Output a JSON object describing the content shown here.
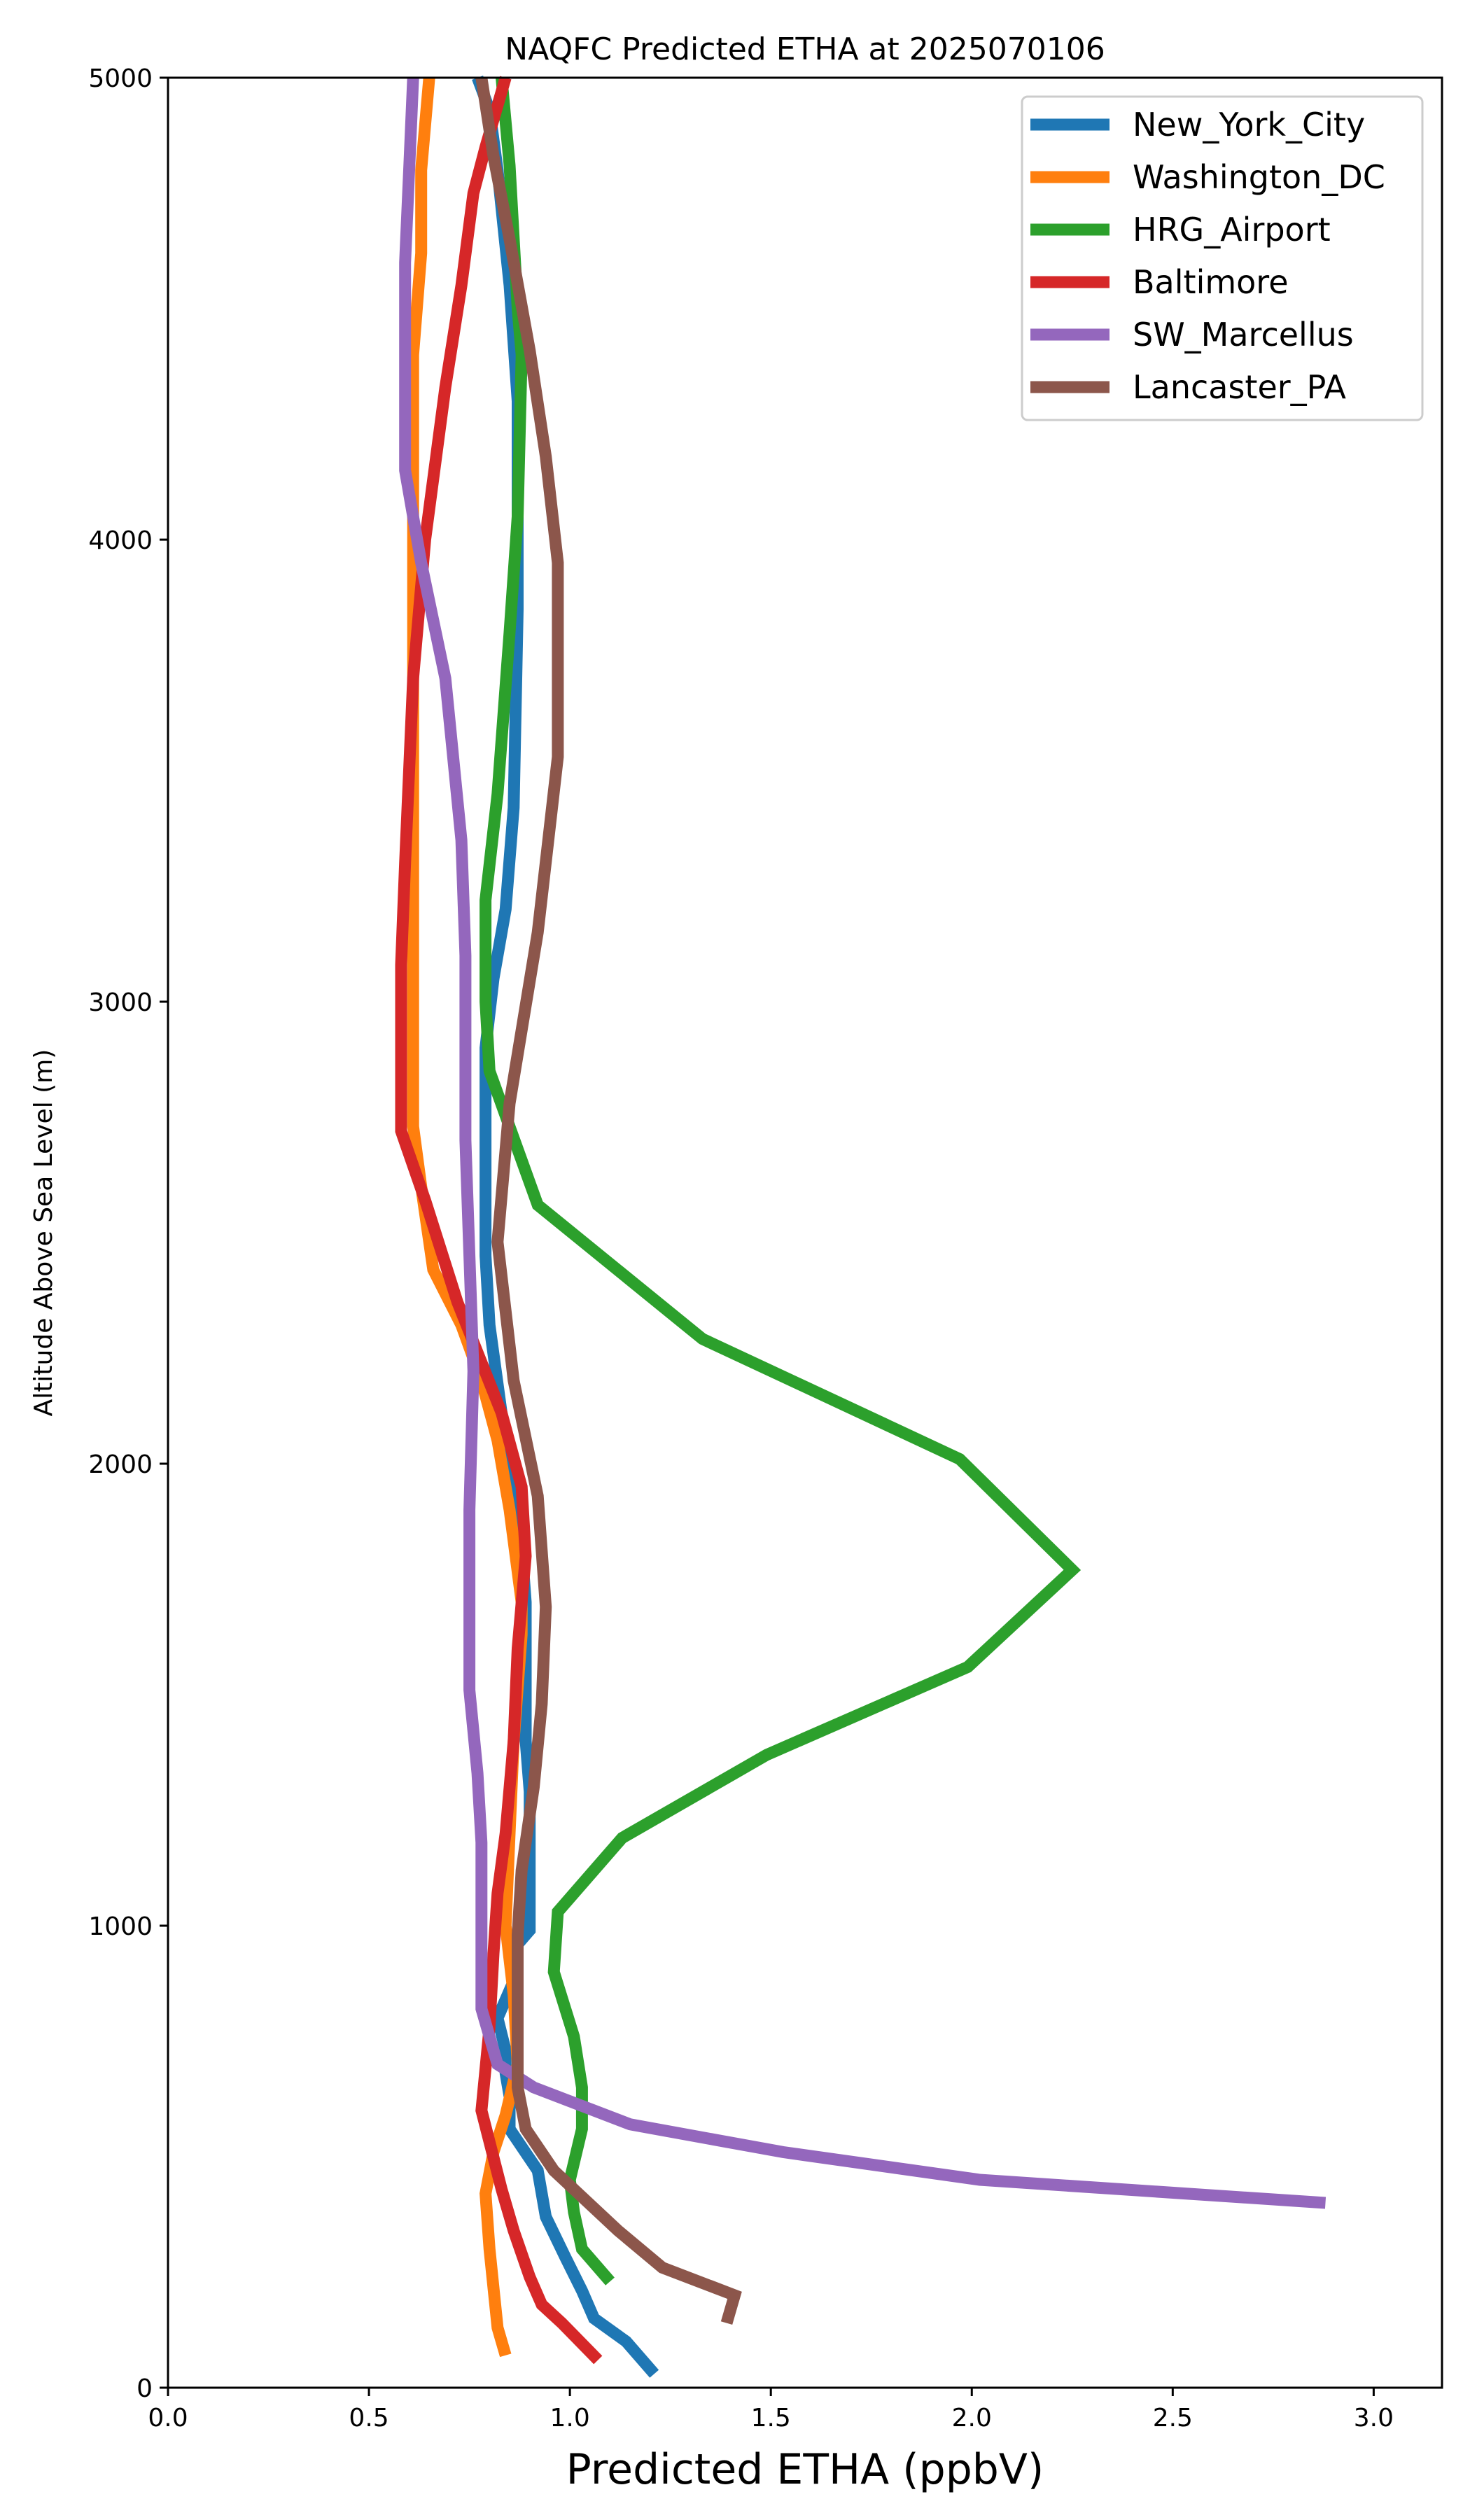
{
  "chart_data": {
    "type": "line",
    "title": "NAQFC Predicted ETHA at 2025070106",
    "xlabel": "Predicted ETHA (ppbV)",
    "ylabel": "Altitude Above Sea Level (m)",
    "xlim": [
      0,
      3.17
    ],
    "ylim": [
      0,
      5000
    ],
    "xticks": [
      "0.0",
      "0.5",
      "1.0",
      "1.5",
      "2.0",
      "2.5",
      "3.0"
    ],
    "yticks": [
      "0",
      "1000",
      "2000",
      "3000",
      "4000",
      "5000"
    ],
    "grid": false,
    "legend_position": "top-right",
    "series": [
      {
        "name": "New_York_City",
        "color": "#1f77b4",
        "points": [
          [
            1.21,
            30
          ],
          [
            1.14,
            100
          ],
          [
            1.06,
            150
          ],
          [
            1.03,
            210
          ],
          [
            0.99,
            280
          ],
          [
            0.94,
            370
          ],
          [
            0.92,
            470
          ],
          [
            0.85,
            560
          ],
          [
            0.85,
            630
          ],
          [
            0.84,
            680
          ],
          [
            0.84,
            730
          ],
          [
            0.82,
            800
          ],
          [
            0.86,
            880
          ],
          [
            0.86,
            950
          ],
          [
            0.9,
            990
          ],
          [
            0.9,
            1060
          ],
          [
            0.9,
            1180
          ],
          [
            0.9,
            1290
          ],
          [
            0.89,
            1400
          ],
          [
            0.89,
            1510
          ],
          [
            0.89,
            1620
          ],
          [
            0.89,
            1700
          ],
          [
            0.88,
            1820
          ],
          [
            0.86,
            1950
          ],
          [
            0.83,
            2110
          ],
          [
            0.8,
            2300
          ],
          [
            0.79,
            2450
          ],
          [
            0.79,
            2700
          ],
          [
            0.79,
            2900
          ],
          [
            0.81,
            3050
          ],
          [
            0.84,
            3200
          ],
          [
            0.86,
            3420
          ],
          [
            0.87,
            3850
          ],
          [
            0.87,
            4150
          ],
          [
            0.87,
            4300
          ],
          [
            0.85,
            4550
          ],
          [
            0.82,
            4800
          ],
          [
            0.8,
            4930
          ],
          [
            0.77,
            5000
          ]
        ]
      },
      {
        "name": "Washington_DC",
        "color": "#ff7f0e",
        "points": [
          [
            0.84,
            70
          ],
          [
            0.82,
            130
          ],
          [
            0.8,
            300
          ],
          [
            0.79,
            420
          ],
          [
            0.81,
            510
          ],
          [
            0.84,
            590
          ],
          [
            0.87,
            700
          ],
          [
            0.86,
            850
          ],
          [
            0.84,
            1000
          ],
          [
            0.85,
            1200
          ],
          [
            0.86,
            1400
          ],
          [
            0.88,
            1630
          ],
          [
            0.88,
            1700
          ],
          [
            0.85,
            1900
          ],
          [
            0.82,
            2050
          ],
          [
            0.78,
            2180
          ],
          [
            0.73,
            2300
          ],
          [
            0.66,
            2420
          ],
          [
            0.63,
            2600
          ],
          [
            0.61,
            2730
          ],
          [
            0.61,
            3000
          ],
          [
            0.61,
            3300
          ],
          [
            0.61,
            3600
          ],
          [
            0.61,
            3950
          ],
          [
            0.61,
            4100
          ],
          [
            0.61,
            4400
          ],
          [
            0.63,
            4620
          ],
          [
            0.63,
            4800
          ],
          [
            0.65,
            5000
          ]
        ]
      },
      {
        "name": "HRG_Airport",
        "color": "#2ca02c",
        "points": [
          [
            1.1,
            230
          ],
          [
            1.03,
            300
          ],
          [
            1.01,
            380
          ],
          [
            1.0,
            450
          ],
          [
            1.03,
            560
          ],
          [
            1.03,
            650
          ],
          [
            1.01,
            760
          ],
          [
            0.96,
            900
          ],
          [
            0.97,
            1030
          ],
          [
            1.13,
            1190
          ],
          [
            1.49,
            1370
          ],
          [
            1.99,
            1560
          ],
          [
            2.25,
            1770
          ],
          [
            1.97,
            2010
          ],
          [
            1.33,
            2270
          ],
          [
            0.92,
            2560
          ],
          [
            0.8,
            2850
          ],
          [
            0.79,
            3000
          ],
          [
            0.79,
            3220
          ],
          [
            0.82,
            3450
          ],
          [
            0.85,
            3800
          ],
          [
            0.87,
            4050
          ],
          [
            0.88,
            4400
          ],
          [
            0.87,
            4500
          ],
          [
            0.85,
            4810
          ],
          [
            0.83,
            5000
          ]
        ]
      },
      {
        "name": "Baltimore",
        "color": "#d62728",
        "points": [
          [
            1.07,
            60
          ],
          [
            0.98,
            140
          ],
          [
            0.93,
            180
          ],
          [
            0.9,
            240
          ],
          [
            0.86,
            340
          ],
          [
            0.83,
            430
          ],
          [
            0.78,
            600
          ],
          [
            0.8,
            780
          ],
          [
            0.81,
            940
          ],
          [
            0.82,
            1070
          ],
          [
            0.84,
            1200
          ],
          [
            0.86,
            1400
          ],
          [
            0.87,
            1600
          ],
          [
            0.89,
            1800
          ],
          [
            0.88,
            1950
          ],
          [
            0.83,
            2110
          ],
          [
            0.72,
            2350
          ],
          [
            0.64,
            2570
          ],
          [
            0.58,
            2720
          ],
          [
            0.58,
            3080
          ],
          [
            0.59,
            3300
          ],
          [
            0.61,
            3700
          ],
          [
            0.64,
            4000
          ],
          [
            0.69,
            4330
          ],
          [
            0.73,
            4550
          ],
          [
            0.76,
            4750
          ],
          [
            0.79,
            4850
          ],
          [
            0.84,
            5000
          ]
        ]
      },
      {
        "name": "SW_Marcellus",
        "color": "#9467bd",
        "points": [
          [
            2.88,
            400
          ],
          [
            2.02,
            450
          ],
          [
            1.53,
            510
          ],
          [
            1.15,
            570
          ],
          [
            0.91,
            650
          ],
          [
            0.82,
            700
          ],
          [
            0.78,
            820
          ],
          [
            0.78,
            930
          ],
          [
            0.78,
            1040
          ],
          [
            0.78,
            1180
          ],
          [
            0.77,
            1330
          ],
          [
            0.75,
            1510
          ],
          [
            0.75,
            1700
          ],
          [
            0.75,
            1900
          ],
          [
            0.76,
            2200
          ],
          [
            0.75,
            2450
          ],
          [
            0.74,
            2700
          ],
          [
            0.74,
            2900
          ],
          [
            0.74,
            3100
          ],
          [
            0.73,
            3350
          ],
          [
            0.69,
            3700
          ],
          [
            0.63,
            3950
          ],
          [
            0.59,
            4150
          ],
          [
            0.59,
            4300
          ],
          [
            0.59,
            4600
          ],
          [
            0.6,
            4800
          ],
          [
            0.61,
            5000
          ]
        ]
      },
      {
        "name": "Lancaster_PA",
        "color": "#8c564b",
        "points": [
          [
            1.39,
            140
          ],
          [
            1.41,
            200
          ],
          [
            1.23,
            260
          ],
          [
            1.12,
            340
          ],
          [
            0.96,
            470
          ],
          [
            0.89,
            560
          ],
          [
            0.87,
            650
          ],
          [
            0.87,
            760
          ],
          [
            0.87,
            860
          ],
          [
            0.87,
            980
          ],
          [
            0.88,
            1120
          ],
          [
            0.91,
            1300
          ],
          [
            0.93,
            1480
          ],
          [
            0.94,
            1690
          ],
          [
            0.92,
            1930
          ],
          [
            0.86,
            2180
          ],
          [
            0.82,
            2480
          ],
          [
            0.85,
            2780
          ],
          [
            0.92,
            3150
          ],
          [
            0.97,
            3530
          ],
          [
            0.97,
            3950
          ],
          [
            0.94,
            4180
          ],
          [
            0.9,
            4410
          ],
          [
            0.85,
            4650
          ],
          [
            0.81,
            4830
          ],
          [
            0.78,
            5000
          ]
        ]
      }
    ]
  }
}
